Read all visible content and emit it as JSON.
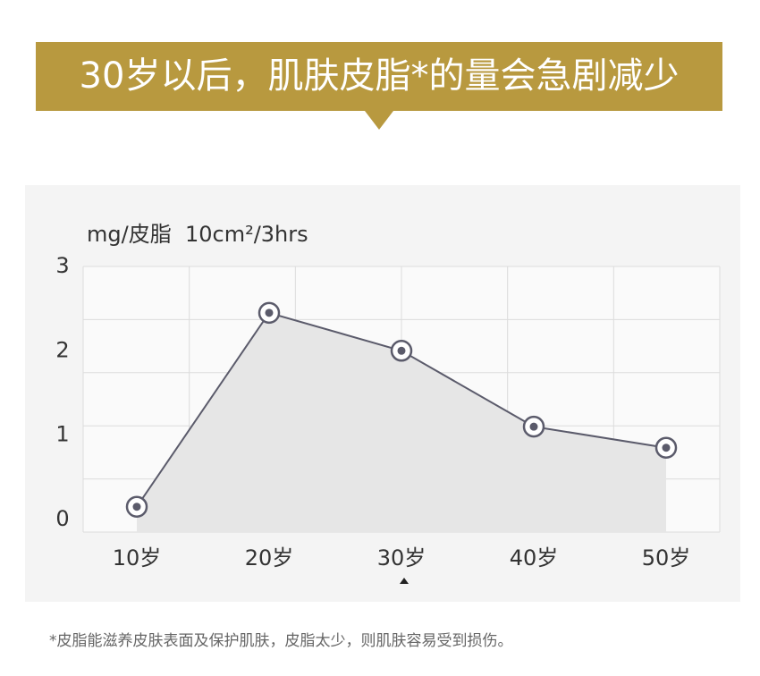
{
  "chart_data": {
    "type": "line",
    "title": "30岁以后，肌肤皮脂*的量会急剧减少",
    "y_label": "mg/皮脂  10cm²/3hrs",
    "categories": [
      "10岁",
      "20岁",
      "30岁",
      "40岁",
      "50岁"
    ],
    "series": [
      {
        "color": "#5b5b6b",
        "values": [
          0.15,
          2.45,
          2.0,
          1.1,
          0.85
        ]
      }
    ],
    "area": true,
    "area_color": "#e6e6e6",
    "ylim": [
      -0.15,
      3
    ],
    "yticks": [
      0,
      1,
      2,
      3
    ],
    "grid": true
  },
  "footnote": "*皮脂能滋养皮肤表面及保护肌肤，皮脂太少，则肌肤容易受到损伤。"
}
